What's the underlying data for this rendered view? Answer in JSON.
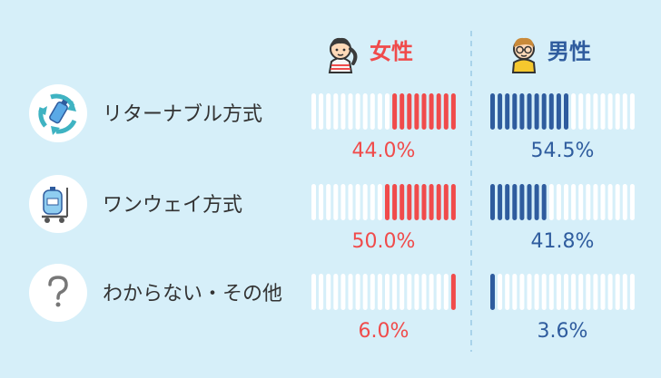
{
  "chart_data": {
    "type": "bar",
    "title": "",
    "xlabel": "",
    "ylabel": "",
    "ylim": [
      0,
      100
    ],
    "categories": [
      "リターナブル方式",
      "ワンウェイ方式",
      "わからない・その他"
    ],
    "category_icons": [
      "recycle-icon",
      "water-jug-cart-icon",
      "question-icon"
    ],
    "series": [
      {
        "name": "女性",
        "values": [
          44.0,
          50.0,
          6.0
        ],
        "labels": [
          "44.0%",
          "50.0%",
          "6.0%"
        ],
        "color": "#f04b4b",
        "icon": "woman-avatar-icon"
      },
      {
        "name": "男性",
        "values": [
          54.5,
          41.8,
          3.6
        ],
        "labels": [
          "54.5%",
          "41.8%",
          "3.6%"
        ],
        "color": "#2f5c9e",
        "icon": "man-avatar-icon"
      }
    ],
    "colors": {
      "background": "#d6eff9",
      "empty_segment": "#ffffff",
      "divider": "#a9d3ea",
      "text": "#333333"
    }
  }
}
